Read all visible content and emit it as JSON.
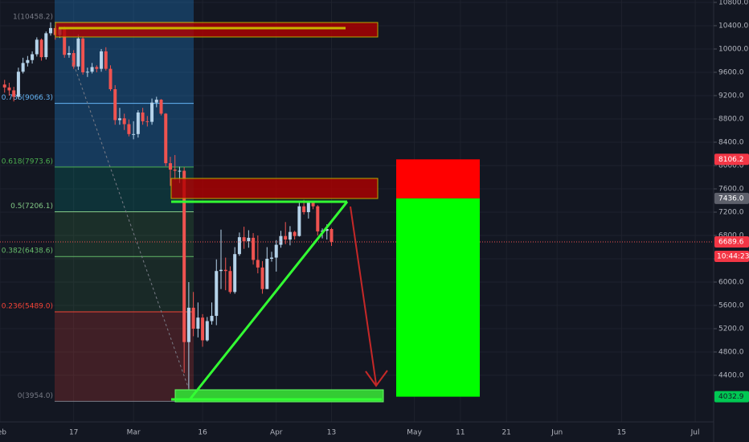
{
  "chart_data": {
    "type": "candlestick",
    "categories": [
      "02-02",
      "02-03",
      "02-04",
      "02-05",
      "02-06",
      "02-07",
      "02-08",
      "02-09",
      "02-10",
      "02-11",
      "02-12",
      "02-13",
      "02-14",
      "02-15",
      "02-16",
      "02-17",
      "02-18",
      "02-19",
      "02-20",
      "02-21",
      "02-22",
      "02-23",
      "02-24",
      "02-25",
      "02-26",
      "02-27",
      "02-28",
      "02-29",
      "03-01",
      "03-02",
      "03-03",
      "03-04",
      "03-05",
      "03-06",
      "03-07",
      "03-08",
      "03-09",
      "03-10",
      "03-11",
      "03-12",
      "03-13",
      "03-14",
      "03-15",
      "03-16",
      "03-17",
      "03-18",
      "03-19",
      "03-20",
      "03-21",
      "03-22",
      "03-23",
      "03-24",
      "03-25",
      "03-26",
      "03-27",
      "03-28",
      "03-29",
      "03-30",
      "03-31",
      "04-01",
      "04-02",
      "04-03",
      "04-04",
      "04-05",
      "04-06",
      "04-07",
      "04-08",
      "04-09",
      "04-10",
      "04-11",
      "04-12",
      "04-13"
    ],
    "open": [
      9390,
      9340,
      9290,
      9180,
      9610,
      9760,
      9810,
      9910,
      10160,
      9860,
      10270,
      10360,
      10240,
      10360,
      9900,
      9930,
      9700,
      10180,
      9600,
      9610,
      9690,
      9660,
      9960,
      9660,
      9310,
      8780,
      8810,
      8710,
      8540,
      8540,
      8910,
      8760,
      8750,
      9080,
      9130,
      8890,
      8040,
      7930,
      7910,
      7910,
      4970,
      5560,
      5200,
      5390,
      5000,
      5330,
      5420,
      6190,
      6210,
      6190,
      5830,
      6480,
      6770,
      6700,
      6760,
      6380,
      6250,
      5880,
      6400,
      6420,
      6640,
      6790,
      6730,
      6860,
      6790,
      7300,
      7200,
      7370,
      7300,
      6870,
      6880,
      6910
    ],
    "high": [
      9470,
      9420,
      9350,
      9680,
      9850,
      9880,
      9960,
      10200,
      10180,
      10300,
      10458.2,
      10400,
      10380,
      10390,
      10050,
      9980,
      10250,
      10220,
      9680,
      9760,
      9720,
      10000,
      10030,
      9720,
      9380,
      8990,
      8890,
      8790,
      8760,
      8950,
      8990,
      8850,
      9150,
      9180,
      9140,
      8900,
      8150,
      8180,
      7980,
      7970,
      6000,
      5830,
      5650,
      5450,
      5400,
      5650,
      6390,
      6900,
      6420,
      6270,
      6600,
      6850,
      6950,
      6890,
      6840,
      6800,
      6360,
      6600,
      6520,
      6720,
      6880,
      7030,
      6960,
      6880,
      7390,
      7410,
      7400,
      7380,
      7320,
      6920,
      6990,
      6930
    ],
    "low": [
      9250,
      9200,
      9100,
      9140,
      9580,
      9700,
      9750,
      9870,
      9800,
      9820,
      10230,
      10160,
      10190,
      9850,
      9850,
      9660,
      9640,
      9560,
      9520,
      9580,
      9600,
      9610,
      9630,
      9280,
      8700,
      8700,
      8610,
      8500,
      8450,
      8480,
      8700,
      8670,
      8700,
      9000,
      8860,
      7990,
      7650,
      7750,
      7700,
      4440,
      3954,
      5070,
      5050,
      4890,
      4980,
      5270,
      5260,
      5880,
      5860,
      5800,
      5800,
      6450,
      6570,
      6590,
      6300,
      6150,
      5800,
      5880,
      6350,
      6180,
      6590,
      6650,
      6630,
      6730,
      6780,
      7160,
      7090,
      7250,
      6800,
      6750,
      6730,
      6620
    ],
    "close": [
      9340,
      9290,
      9180,
      9610,
      9760,
      9810,
      9910,
      10160,
      9860,
      10270,
      10360,
      10240,
      10360,
      9900,
      9930,
      9700,
      10180,
      9600,
      9610,
      9690,
      9660,
      9960,
      9660,
      9310,
      8780,
      8810,
      8710,
      8540,
      8540,
      8910,
      8760,
      8750,
      9080,
      9130,
      8890,
      8040,
      7930,
      7910,
      7910,
      4970,
      5560,
      5200,
      5390,
      5000,
      5330,
      5420,
      6190,
      6210,
      6190,
      5830,
      6480,
      6770,
      6700,
      6760,
      6380,
      6250,
      5880,
      6400,
      6420,
      6640,
      6790,
      6730,
      6860,
      6790,
      7300,
      7200,
      7370,
      7300,
      6870,
      6880,
      6910,
      6690
    ],
    "up_color": "#b5d3ea",
    "down_color": "#ef5350",
    "xlim": [
      "02-01",
      "07-05"
    ],
    "xticks": [
      {
        "value": "02-01",
        "label": "Feb"
      },
      {
        "value": "02-17",
        "label": "17"
      },
      {
        "value": "03-01",
        "label": "Mar"
      },
      {
        "value": "03-16",
        "label": "16"
      },
      {
        "value": "04-01",
        "label": "Apr"
      },
      {
        "value": "04-13",
        "label": "13"
      },
      {
        "value": "05-01",
        "label": "May"
      },
      {
        "value": "05-11",
        "label": "11"
      },
      {
        "value": "05-21",
        "label": "21"
      },
      {
        "value": "06-01",
        "label": "Jun"
      },
      {
        "value": "06-15",
        "label": "15"
      },
      {
        "value": "07-01",
        "label": "Jul"
      }
    ],
    "ylim": [
      3600,
      10841
    ],
    "yticks": [
      {
        "value": 4400,
        "label": "4400.0"
      },
      {
        "value": 4800,
        "label": "4800.0"
      },
      {
        "value": 5200,
        "label": "5200.0"
      },
      {
        "value": 5600,
        "label": "5600.0"
      },
      {
        "value": 6000,
        "label": "6000.0"
      },
      {
        "value": 6400,
        "label": "6400.0"
      },
      {
        "value": 6800,
        "label": "6800.0"
      },
      {
        "value": 7200,
        "label": "7200.0"
      },
      {
        "value": 7600,
        "label": "7600.0"
      },
      {
        "value": 8000,
        "label": "8000.0"
      },
      {
        "value": 8400,
        "label": "8400.0"
      },
      {
        "value": 8800,
        "label": "8800.0"
      },
      {
        "value": 9200,
        "label": "9200.0"
      },
      {
        "value": 9600,
        "label": "9600.0"
      },
      {
        "value": 10000,
        "label": "10000.0"
      },
      {
        "value": 10400,
        "label": "10400.0"
      },
      {
        "value": 10800,
        "label": "10800.0"
      }
    ],
    "fib_levels": [
      {
        "value": 10458.2,
        "label": "1(10458.2)",
        "color": "#787b86"
      },
      {
        "value": 9066.3,
        "label": "0.786(9066.3)",
        "color": "#64b5f6"
      },
      {
        "value": 7973.6,
        "label": "0.618(7973.6)",
        "color": "#4caf50"
      },
      {
        "value": 7206.1,
        "label": "0.5(7206.1)",
        "color": "#81c784"
      },
      {
        "value": 6438.6,
        "label": "0.382(6438.6)",
        "color": "#66bb6a"
      },
      {
        "value": 5489,
        "label": "0.236(5489.0)",
        "color": "#f44336"
      },
      {
        "value": 3954,
        "label": "0(3954.0)",
        "color": "#787b86"
      }
    ],
    "position": {
      "stop": 8106.2,
      "entry": {
        "value": 7436,
        "label": "7436.0"
      },
      "target": 4032.9
    },
    "last_price": 6689.6,
    "countdown": "10:44:23"
  }
}
